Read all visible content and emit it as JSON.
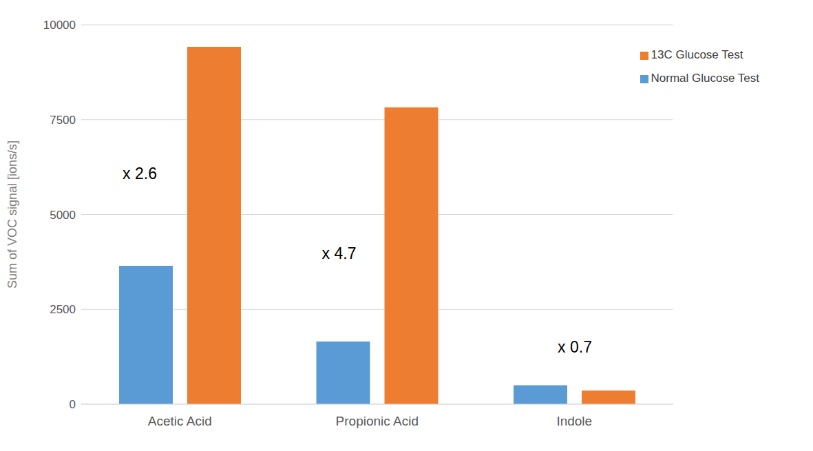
{
  "chart_data": {
    "type": "bar",
    "y_label": "Sum of VOC signal [ions/s]",
    "categories": [
      "Acetic Acid",
      "Propionic Acid",
      "Indole"
    ],
    "series": [
      {
        "name": "Normal Glucose Test",
        "color": "#5b9bd5",
        "values": [
          3650,
          1650,
          500
        ]
      },
      {
        "name": "13C Glucose Test",
        "color": "#ed7d31",
        "values": [
          9420,
          7820,
          360
        ]
      }
    ],
    "annotations": [
      "x 2.6",
      "x 4.7",
      "x 0.7"
    ],
    "ylim": [
      0,
      10000
    ],
    "yticks": [
      0,
      2500,
      5000,
      7500,
      10000
    ],
    "grid": true,
    "legend": "upper right"
  }
}
